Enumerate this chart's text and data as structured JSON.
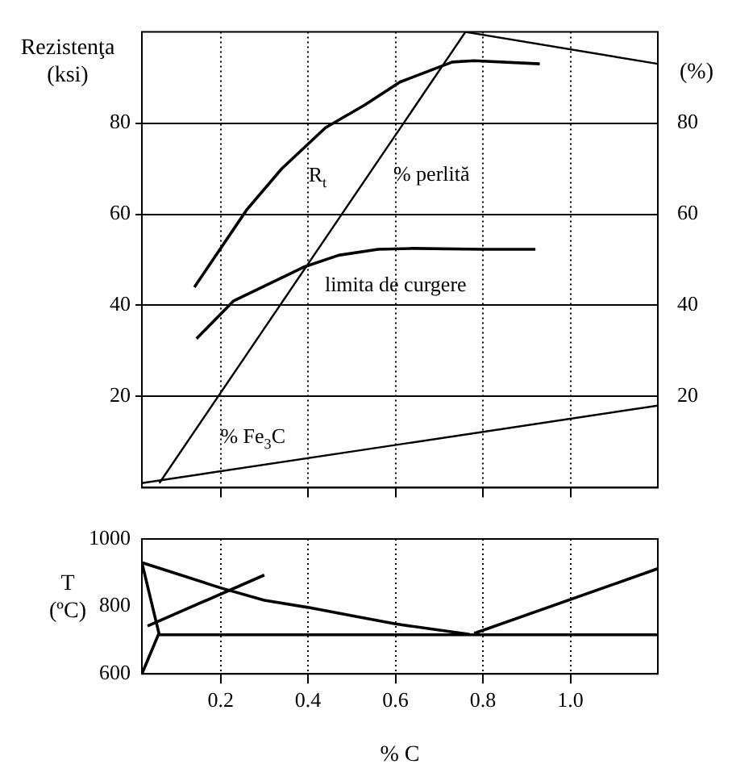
{
  "chart_data": [
    {
      "type": "line",
      "ylabel": "Rezistenţa (ksi)",
      "y2label": "(%)",
      "xlim": [
        0.02,
        1.2
      ],
      "xticks": [
        0.2,
        0.4,
        0.6,
        0.8,
        1.0
      ],
      "tick_labels": "y",
      "ylim": [
        0,
        100
      ],
      "yticks": [
        20,
        40,
        60,
        80
      ],
      "y2lim": [
        0,
        100
      ],
      "y2ticks": [
        20,
        40,
        60,
        80
      ],
      "grid": true,
      "series": [
        {
          "name": "R$_{t}$",
          "color": "#000000",
          "x": [
            0.14,
            0.26,
            0.34,
            0.44,
            0.53,
            0.61,
            0.73,
            0.78,
            0.93
          ],
          "values": [
            44,
            61,
            70,
            79,
            84,
            89,
            93.4,
            93.7,
            93
          ]
        },
        {
          "name": "limita de curgere",
          "color": "#000000",
          "x": [
            0.145,
            0.23,
            0.39,
            0.47,
            0.56,
            0.64,
            0.8,
            0.92
          ],
          "values": [
            32.7,
            41,
            48.4,
            51,
            52.3,
            52.5,
            52.3,
            52.3
          ]
        },
        {
          "name": "% perlită",
          "color": "#000000",
          "axis": "y2",
          "x": [
            0.06,
            0.76,
            1.2
          ],
          "values": [
            1,
            100,
            93
          ]
        },
        {
          "name": "% Fe$_{3}$C",
          "color": "#000000",
          "axis": "y2",
          "x": [
            0.02,
            1.2
          ],
          "values": [
            1,
            18
          ]
        }
      ]
    },
    {
      "type": "line",
      "ylabel": "T (ºC)",
      "xlabel": "% C",
      "xlim": [
        0.02,
        1.2
      ],
      "xticks": [
        0.2,
        0.4,
        0.6,
        0.8,
        {
          "value": 1.0,
          "label": "1.0"
        }
      ],
      "ylim": [
        600,
        1000
      ],
      "yticks": [
        600,
        800,
        1000
      ],
      "grid": "x",
      "series": [
        {
          "color": "#000000",
          "x": [
            0.02,
            0.2,
            0.3,
            0.4,
            0.6,
            0.77
          ],
          "values": [
            930,
            855,
            818,
            797,
            748,
            717
          ]
        },
        {
          "color": "#000000",
          "x": [
            0.78,
            1.2
          ],
          "values": [
            720,
            912
          ]
        },
        {
          "color": "#000000",
          "x": [
            0.059,
            1.2
          ],
          "values": [
            716,
            716
          ]
        },
        {
          "color": "#000000",
          "x": [
            0.02,
            0.059,
            0.02
          ],
          "values": [
            930,
            720,
            600
          ]
        },
        {
          "color": "#000000",
          "x": [
            0.033,
            0.3
          ],
          "values": [
            742,
            893
          ]
        }
      ]
    }
  ]
}
